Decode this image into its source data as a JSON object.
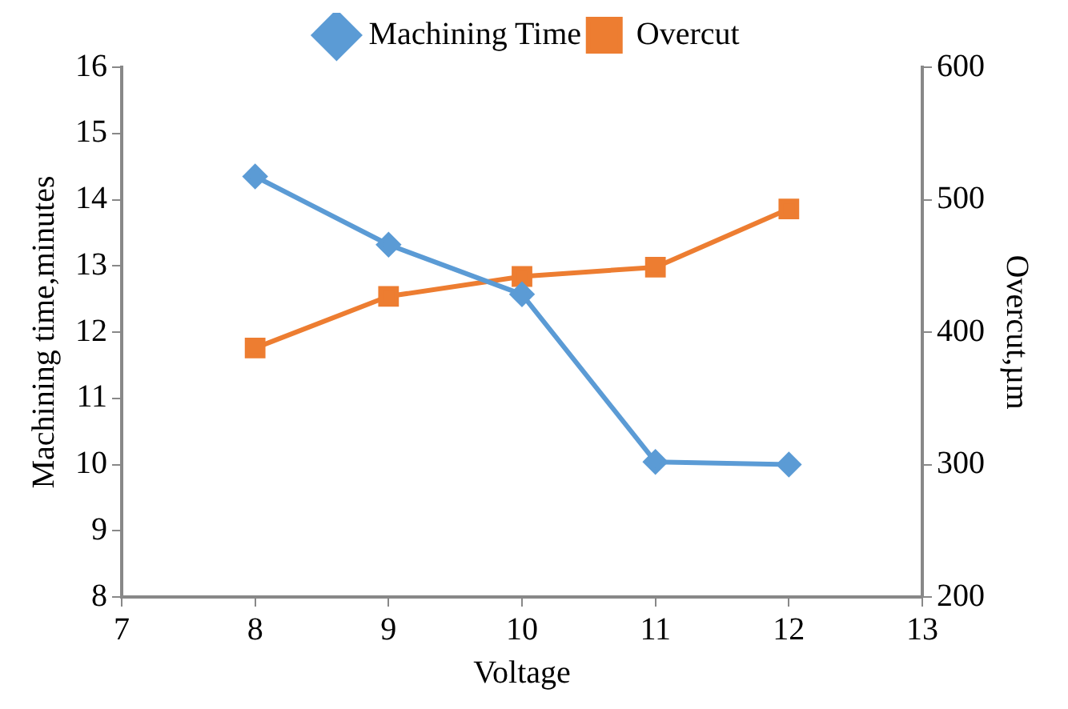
{
  "chart_data": {
    "type": "line",
    "xlabel": "Voltage",
    "ylabel": "Machining time,minutes",
    "y2label": "Overcut,µm",
    "x": [
      8,
      9,
      10,
      11,
      12
    ],
    "series": [
      {
        "name": "Machining Time",
        "color": "#5b9bd5",
        "marker": "diamond",
        "values": [
          14.35,
          13.32,
          12.57,
          10.04,
          10.0
        ]
      },
      {
        "name": "Overcut",
        "color": "#ed7d31",
        "marker": "square",
        "axis": "y2",
        "values": [
          388,
          427,
          442,
          449,
          493
        ]
      }
    ],
    "xlim": [
      7,
      13
    ],
    "xticks": [
      7,
      8,
      9,
      10,
      11,
      12,
      13
    ],
    "ylim": [
      8,
      16
    ],
    "yticks": [
      8,
      9,
      10,
      11,
      12,
      13,
      14,
      15,
      16
    ],
    "y2lim": [
      200,
      600
    ],
    "y2ticks": [
      200,
      300,
      400,
      500,
      600
    ],
    "grid": false,
    "legend": "top",
    "line_style": "solid"
  }
}
